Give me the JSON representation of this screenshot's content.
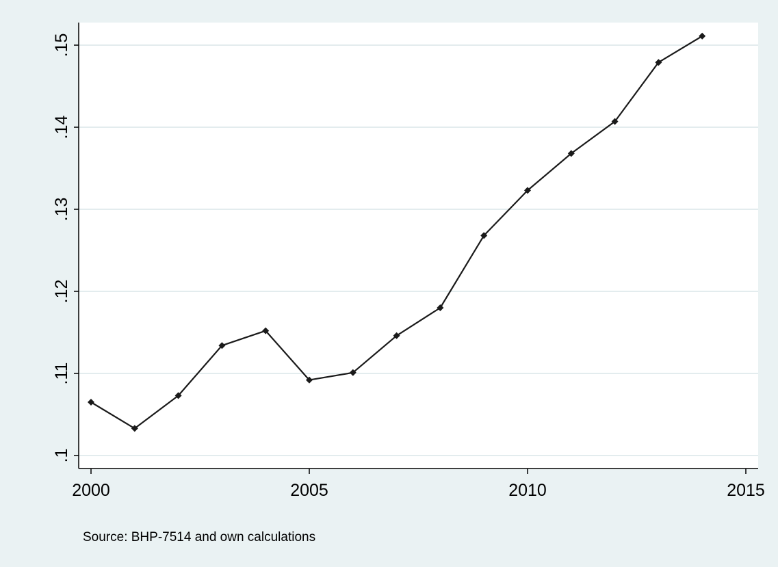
{
  "chart_data": {
    "type": "line",
    "title": "",
    "xlabel": "",
    "ylabel": "",
    "xlim": [
      2000,
      2015
    ],
    "ylim": [
      0.1,
      0.15
    ],
    "x_ticks": [
      2000,
      2005,
      2010,
      2015
    ],
    "x_tick_labels": [
      "2000",
      "2005",
      "2010",
      "2015"
    ],
    "y_ticks": [
      0.1,
      0.11,
      0.12,
      0.13,
      0.14,
      0.15
    ],
    "y_tick_labels": [
      ".1",
      ".11",
      ".12",
      ".13",
      ".14",
      ".15"
    ],
    "grid": "horizontal",
    "legend": "none",
    "note": "Source: BHP-7514 and own calculations",
    "colors": {
      "background": "#eaf2f3",
      "plot_area": "#ffffff",
      "line": "#1a1a1a",
      "grid": "#e3ecee"
    },
    "series": [
      {
        "x": [
          2000,
          2001,
          2002,
          2003,
          2004,
          2005,
          2006,
          2007,
          2008,
          2009,
          2010,
          2011,
          2012,
          2013,
          2014
        ],
        "values": [
          0.1065,
          0.1033,
          0.1073,
          0.1134,
          0.1152,
          0.1092,
          0.1101,
          0.1146,
          0.118,
          0.1268,
          0.1323,
          0.1368,
          0.1407,
          0.1479,
          0.1511
        ]
      }
    ]
  }
}
